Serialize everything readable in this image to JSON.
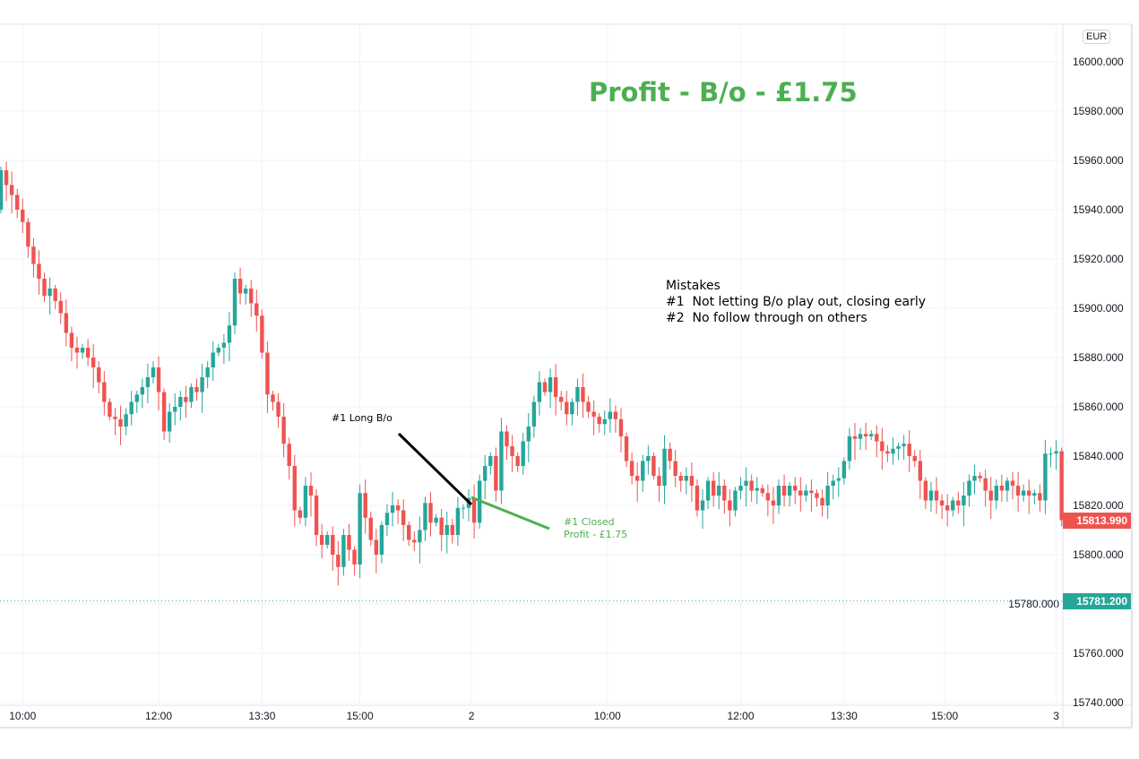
{
  "chart_data": {
    "type": "candlestick",
    "title": "Profit - B/o - £1.75",
    "currency": "EUR",
    "ylim": [
      15733,
      16025
    ],
    "y_ticks": [
      "16000.000",
      "15980.000",
      "15960.000",
      "15940.000",
      "15920.000",
      "15900.000",
      "15880.000",
      "15860.000",
      "15840.000",
      "15820.000",
      "15800.000",
      "15780.000",
      "15760.000",
      "15740.000"
    ],
    "y_tick_values": [
      16000,
      15980,
      15960,
      15940,
      15920,
      15900,
      15880,
      15860,
      15840,
      15820,
      15800,
      15780,
      15760,
      15740
    ],
    "x_ticks": [
      {
        "label": "10:00",
        "index": 4
      },
      {
        "label": "12:00",
        "index": 29
      },
      {
        "label": "13:30",
        "index": 48
      },
      {
        "label": "15:00",
        "index": 66
      },
      {
        "label": "2",
        "index": 86.5
      },
      {
        "label": "10:00",
        "index": 111.5
      },
      {
        "label": "12:00",
        "index": 136
      },
      {
        "label": "13:30",
        "index": 155
      },
      {
        "label": "15:00",
        "index": 173.5
      },
      {
        "label": "3",
        "index": 194
      }
    ],
    "first_open": 15940,
    "closes": [
      15956,
      15950,
      15946,
      15940,
      15935,
      15925,
      15918,
      15912,
      15905,
      15908,
      15903,
      15898,
      15890,
      15884,
      15882,
      15884,
      15880,
      15876,
      15870,
      15862,
      15856,
      15855,
      15852,
      15857,
      15862,
      15865,
      15868,
      15872,
      15876,
      15866,
      15850,
      15858,
      15860,
      15864,
      15862,
      15868,
      15866,
      15872,
      15876,
      15882,
      15884,
      15886,
      15893,
      15912,
      15906,
      15908,
      15902,
      15897,
      15882,
      15865,
      15862,
      15856,
      15845,
      15836,
      15818,
      15815,
      15828,
      15824,
      15808,
      15804,
      15808,
      15800,
      15795,
      15808,
      15802,
      15796,
      15825,
      15815,
      15806,
      15800,
      15812,
      15817,
      15820,
      15818,
      15812,
      15806,
      15805,
      15810,
      15821,
      15813,
      15815,
      15808,
      15812,
      15808,
      15819,
      15819,
      15823,
      15813,
      15830,
      15836,
      15840,
      15826,
      15850,
      15844,
      15840,
      15836,
      15846,
      15852,
      15862,
      15870,
      15866,
      15872,
      15864,
      15862,
      15857,
      15862,
      15868,
      15862,
      15858,
      15856,
      15853,
      15855,
      15858,
      15855,
      15848,
      15838,
      15832,
      15830,
      15838,
      15840,
      15832,
      15828,
      15843,
      15838,
      15832,
      15830,
      15832,
      15828,
      15818,
      15822,
      15830,
      15824,
      15828,
      15822,
      15818,
      15826,
      15828,
      15830,
      15826,
      15827,
      15825,
      15822,
      15820,
      15828,
      15824,
      15828,
      15826,
      15824,
      15826,
      15825,
      15823,
      15820,
      15828,
      15830,
      15831,
      15838,
      15848,
      15847,
      15849,
      15848,
      15849,
      15846,
      15842,
      15841,
      15843,
      15844,
      15845,
      15840,
      15838,
      15830,
      15822,
      15826,
      15822,
      15820,
      15818,
      15822,
      15820,
      15824,
      15830,
      15832,
      15831,
      15826,
      15822,
      15828,
      15826,
      15830,
      15828,
      15824,
      15826,
      15824,
      15825,
      15822,
      15841,
      15841,
      15842,
      15814
    ],
    "last_price": {
      "value": 15813.99,
      "label": "15813.990",
      "color": "#ef5350"
    },
    "reference_line": {
      "value": 15781.2,
      "label": "15781.200",
      "color": "#26a69a"
    },
    "up_color": "#26a69a",
    "down_color": "#ef5350",
    "annotations": {
      "long_bo": "#1 Long B/o",
      "closed_line1": "#1 Closed",
      "closed_line2": "Profit - £1.75",
      "mistakes": "Mistakes\n#1  Not letting B/o play out, closing early\n#2  No follow through on others"
    }
  }
}
